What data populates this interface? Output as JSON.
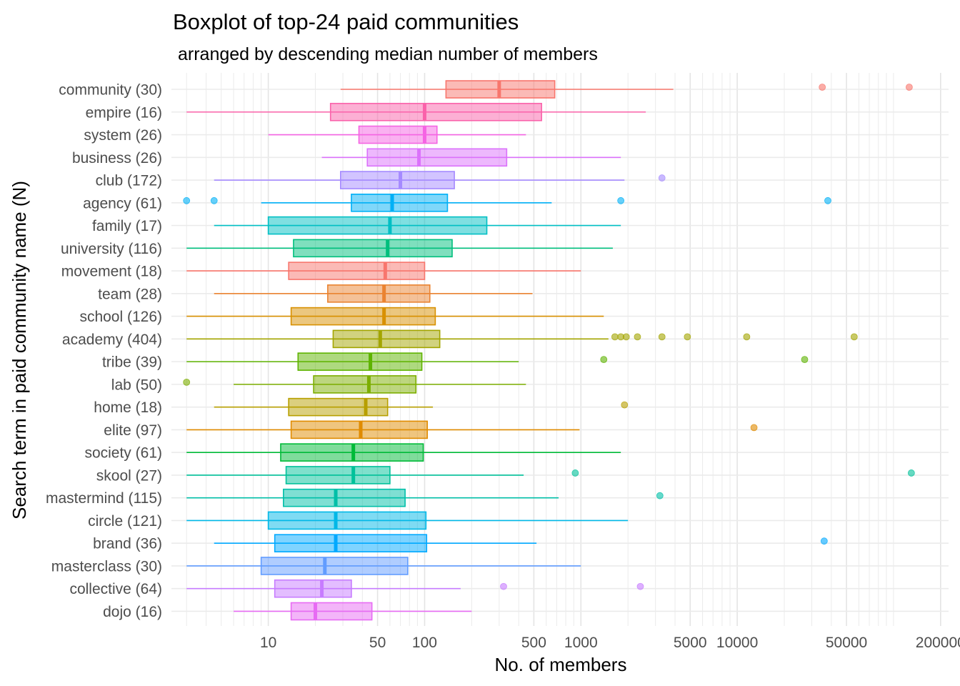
{
  "chart_data": {
    "type": "boxplot",
    "title": "Boxplot of top-24 paid communities",
    "subtitle": "arranged by descending median number of members",
    "xlabel": "No. of members",
    "ylabel": "Search term in paid community name (N)",
    "x_scale": "log10",
    "xlim": [
      2.4,
      225000
    ],
    "x_ticks": [
      {
        "value": 10,
        "label": "10"
      },
      {
        "value": 50,
        "label": "50"
      },
      {
        "value": 100,
        "label": "100"
      },
      {
        "value": 500,
        "label": "500"
      },
      {
        "value": 1000,
        "label": "1000"
      },
      {
        "value": 5000,
        "label": "5000"
      },
      {
        "value": 10000,
        "label": "10000"
      },
      {
        "value": 50000,
        "label": "50000"
      },
      {
        "value": 200000,
        "label": "200000"
      }
    ],
    "grid": true,
    "legend": "none",
    "categories": [
      {
        "label": "community (30)",
        "color": "#F8766D",
        "whisker_low": 29,
        "q1": 137,
        "median": 300,
        "q3": 680,
        "whisker_high": 3900,
        "outliers": [
          35000,
          126000
        ]
      },
      {
        "label": "empire (16)",
        "color": "#FA62AA",
        "whisker_low": 3,
        "q1": 25,
        "median": 100,
        "q3": 560,
        "whisker_high": 2600,
        "outliers": []
      },
      {
        "label": "system (26)",
        "color": "#F564E3",
        "whisker_low": 10,
        "q1": 38,
        "median": 100,
        "q3": 120,
        "whisker_high": 445,
        "outliers": []
      },
      {
        "label": "business (26)",
        "color": "#DB72FB",
        "whisker_low": 22,
        "q1": 43,
        "median": 92,
        "q3": 335,
        "whisker_high": 1800,
        "outliers": []
      },
      {
        "label": "club (172)",
        "color": "#A58AFF",
        "whisker_low": 4.5,
        "q1": 29,
        "median": 70,
        "q3": 155,
        "whisker_high": 1900,
        "outliers": [
          3300
        ]
      },
      {
        "label": "agency (61)",
        "color": "#00B0F6",
        "whisker_low": 9,
        "q1": 34,
        "median": 62,
        "q3": 140,
        "whisker_high": 650,
        "outliers": [
          3,
          4.5,
          1800,
          38000
        ]
      },
      {
        "label": "family (17)",
        "color": "#00BFC4",
        "whisker_low": 4.5,
        "q1": 10,
        "median": 60,
        "q3": 250,
        "whisker_high": 1800,
        "outliers": []
      },
      {
        "label": "university (116)",
        "color": "#00BF7D",
        "whisker_low": 3,
        "q1": 14.5,
        "median": 58,
        "q3": 150,
        "whisker_high": 1600,
        "outliers": []
      },
      {
        "label": "movement (18)",
        "color": "#F8766D",
        "whisker_low": 3,
        "q1": 13.5,
        "median": 56,
        "q3": 100,
        "whisker_high": 1000,
        "outliers": []
      },
      {
        "label": "team (28)",
        "color": "#EA8331",
        "whisker_low": 4.5,
        "q1": 24,
        "median": 55,
        "q3": 108,
        "whisker_high": 490,
        "outliers": []
      },
      {
        "label": "school (126)",
        "color": "#D89000",
        "whisker_low": 3,
        "q1": 14,
        "median": 55,
        "q3": 117,
        "whisker_high": 1400,
        "outliers": []
      },
      {
        "label": "academy (404)",
        "color": "#A3A500",
        "whisker_low": 3,
        "q1": 26,
        "median": 52,
        "q3": 125,
        "whisker_high": 1500,
        "outliers": [
          1650,
          1800,
          1950,
          2300,
          3300,
          4800,
          11500,
          56000
        ]
      },
      {
        "label": "tribe (39)",
        "color": "#5EB300",
        "whisker_low": 3,
        "q1": 15.5,
        "median": 45,
        "q3": 96,
        "whisker_high": 400,
        "outliers": [
          1400,
          27000
        ]
      },
      {
        "label": "lab (50)",
        "color": "#7CAE00",
        "whisker_low": 6,
        "q1": 19.5,
        "median": 44,
        "q3": 88,
        "whisker_high": 445,
        "outliers": [
          3
        ]
      },
      {
        "label": "home (18)",
        "color": "#B79F00",
        "whisker_low": 4.5,
        "q1": 13.5,
        "median": 42,
        "q3": 58,
        "whisker_high": 113,
        "outliers": [
          1900
        ]
      },
      {
        "label": "elite (97)",
        "color": "#E08B00",
        "whisker_low": 3,
        "q1": 14,
        "median": 39,
        "q3": 104,
        "whisker_high": 980,
        "outliers": [
          12800
        ]
      },
      {
        "label": "society (61)",
        "color": "#00BA38",
        "whisker_low": 3,
        "q1": 12,
        "median": 35,
        "q3": 98,
        "whisker_high": 1800,
        "outliers": []
      },
      {
        "label": "skool (27)",
        "color": "#00C19A",
        "whisker_low": 3,
        "q1": 13,
        "median": 35,
        "q3": 60,
        "whisker_high": 430,
        "outliers": [
          920,
          130000
        ]
      },
      {
        "label": "mastermind (115)",
        "color": "#00BFA8",
        "whisker_low": 3,
        "q1": 12.5,
        "median": 27,
        "q3": 75,
        "whisker_high": 720,
        "outliers": [
          3200
        ]
      },
      {
        "label": "circle (121)",
        "color": "#00B8E7",
        "whisker_low": 3,
        "q1": 10,
        "median": 27,
        "q3": 102,
        "whisker_high": 2000,
        "outliers": []
      },
      {
        "label": "brand (36)",
        "color": "#00A9FF",
        "whisker_low": 4.5,
        "q1": 11,
        "median": 27,
        "q3": 103,
        "whisker_high": 520,
        "outliers": [
          36000
        ]
      },
      {
        "label": "masterclass (30)",
        "color": "#619CFF",
        "whisker_low": 3,
        "q1": 9,
        "median": 23,
        "q3": 78,
        "whisker_high": 1000,
        "outliers": []
      },
      {
        "label": "collective (64)",
        "color": "#C77CFF",
        "whisker_low": 3,
        "q1": 11,
        "median": 22,
        "q3": 34,
        "whisker_high": 170,
        "outliers": [
          320,
          2400
        ]
      },
      {
        "label": "dojo (16)",
        "color": "#E76BF3",
        "whisker_low": 6,
        "q1": 14,
        "median": 20,
        "q3": 46,
        "whisker_high": 200,
        "outliers": []
      }
    ]
  }
}
